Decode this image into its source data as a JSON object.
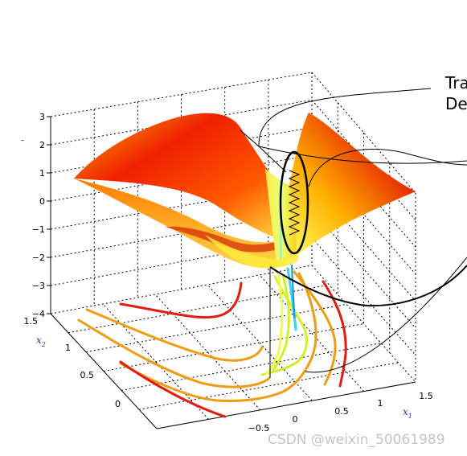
{
  "chart_data": {
    "type": "surface3d",
    "title": "",
    "zlabel": "",
    "xlabel": "x",
    "xlabel_sub": "1",
    "ylabel": "x",
    "ylabel_sub": "2",
    "zlim": [
      -4,
      3
    ],
    "zticks": [
      "3",
      "2",
      "1",
      "0",
      "−1",
      "−2",
      "−3",
      "−4"
    ],
    "xticks": [
      "−0.5",
      "0",
      "0.5",
      "1",
      "1.5"
    ],
    "yticks": [
      "1.5",
      "1",
      "0.5",
      "0"
    ],
    "grid": true,
    "colormap": [
      "#ffff55",
      "#ffd21e",
      "#ff9600",
      "#f03200",
      "#a00000"
    ],
    "contour_colors": [
      "#e51a10",
      "#f09c12",
      "#d4f024",
      "#33d6ee"
    ],
    "callout_lines": [
      "Tra",
      "De"
    ]
  },
  "watermark": "CSDN @weixin_50061989"
}
